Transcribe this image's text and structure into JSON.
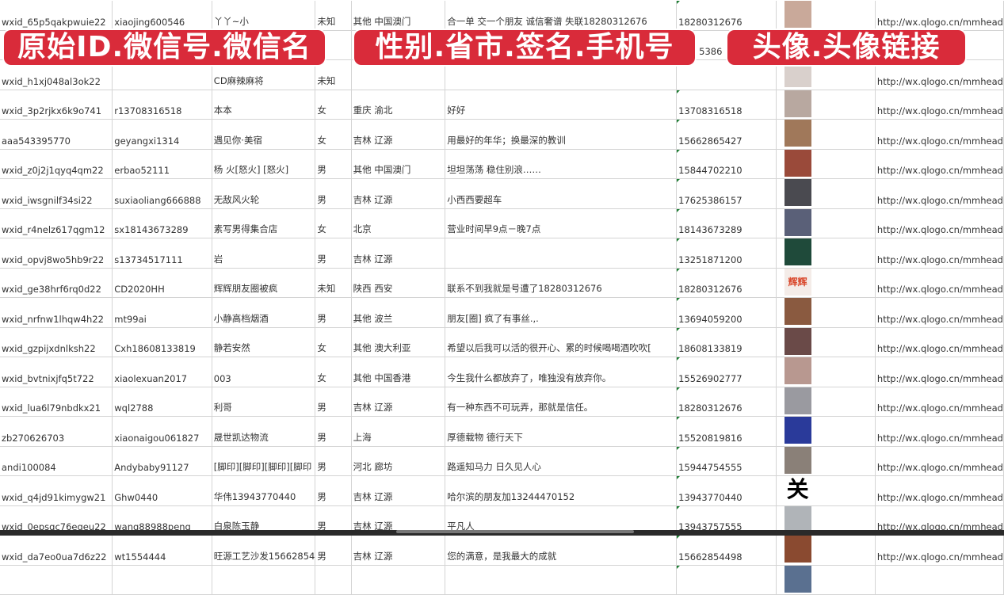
{
  "overlay_labels": [
    "原始ID.微信号.微信名",
    "性别.省市.签名.手机号",
    "头像.头像链接"
  ],
  "url_prefix": "http://wx.qlogo.cn/mmhead",
  "rows": [
    {
      "id": "wxid_65p5qakpwuie22",
      "wechat": "xiaojing600546",
      "name": "丫丫~小",
      "gender": "未知",
      "region": "其他 中国澳门",
      "signature": "合一单 交一个朋友 诚信奢谱 失联18280312676",
      "phone": "18280312676",
      "avatar": "#c9a99a"
    },
    {
      "id": "",
      "wechat": "",
      "name": "",
      "gender": "",
      "region": "",
      "signature": "",
      "phone": "5386",
      "avatar": "#8a9ab8"
    },
    {
      "id": "wxid_h1xj048al3ok22",
      "wechat": "",
      "name": "CD麻辣麻将",
      "gender": "未知",
      "region": "",
      "signature": "",
      "phone": "",
      "avatar": "#d9d0cc"
    },
    {
      "id": "wxid_3p2rjkx6k9o741",
      "wechat": "r13708316518",
      "name": "本本",
      "gender": "女",
      "region": "重庆 渝北",
      "signature": "好好",
      "phone": "13708316518",
      "avatar": "#b8a8a0"
    },
    {
      "id": "aaa543395770",
      "wechat": "geyangxi1314",
      "name": "遇见你·美宿",
      "gender": "女",
      "region": "吉林 辽源",
      "signature": "用最好的年华；换最深的教训",
      "phone": "15662865427",
      "avatar": "#a0785a"
    },
    {
      "id": "wxid_z0j2j1qyq4qm22",
      "wechat": "erbao52111",
      "name": "杨 火[怒火] [怒火]",
      "gender": "男",
      "region": "其他 中国澳门",
      "signature": "坦坦荡荡 稳住别浪……",
      "phone": "15844702210",
      "avatar": "#9a4a3a"
    },
    {
      "id": "wxid_iwsgnilf34si22",
      "wechat": "suxiaoliang666888",
      "name": "无敌风火轮",
      "gender": "男",
      "region": "吉林 辽源",
      "signature": "小西西要超车",
      "phone": "17625386157",
      "avatar": "#4a4a50"
    },
    {
      "id": "wxid_r4nelz617qgm12",
      "wechat": "sx18143673289",
      "name": "素写男得集合店",
      "gender": "女",
      "region": "北京",
      "signature": "营业时间早9点－晚7点",
      "phone": "18143673289",
      "avatar": "#5a6078"
    },
    {
      "id": "wxid_opvj8wo5hb9r22",
      "wechat": "s13734517111",
      "name": "岩",
      "gender": "男",
      "region": "吉林 辽源",
      "signature": "",
      "phone": "13251871200",
      "avatar": "#1f4a3a"
    },
    {
      "id": "wxid_ge38hrf6rq0d22",
      "wechat": "CD2020HH",
      "name": "辉辉朋友圈被疯",
      "gender": "未知",
      "region": "陕西 西安",
      "signature": "联系不到我就是号遭了18280312676",
      "phone": "18280312676",
      "avatar": "#f4ece8",
      "avatar_text": "辉辉"
    },
    {
      "id": "wxid_nrfnw1lhqw4h22",
      "wechat": "mt99ai",
      "name": "小静高档烟酒",
      "gender": "男",
      "region": "其他 波兰",
      "signature": "朋友[圈] 疯了有事丝.,.",
      "phone": "13694059200",
      "avatar": "#8a5a40"
    },
    {
      "id": "wxid_gzpijxdnlksh22",
      "wechat": "Cxh18608133819",
      "name": "静若安然",
      "gender": "女",
      "region": "其他 澳大利亚",
      "signature": "希望以后我可以活的很开心、累的时候喝喝酒吹吹[",
      "phone": "18608133819",
      "avatar": "#6a4a48"
    },
    {
      "id": "wxid_bvtnixjfq5t722",
      "wechat": "xiaolexuan2017",
      "name": "003",
      "gender": "女",
      "region": "其他 中国香港",
      "signature": "今生我什么都放弃了，唯独没有放弃你。",
      "phone": "15526902777",
      "avatar": "#b89890"
    },
    {
      "id": "wxid_lua6l79nbdkx21",
      "wechat": "wql2788",
      "name": "利哥",
      "gender": "男",
      "region": "吉林 辽源",
      "signature": "有一种东西不可玩弄，那就是信任。",
      "phone": "18280312676",
      "avatar": "#9a9aa0"
    },
    {
      "id": "zb270626703",
      "wechat": "xiaonaigou061827",
      "name": "晟世凯达物流",
      "gender": "男",
      "region": "上海",
      "signature": "厚德载物 德行天下",
      "phone": "15520819816",
      "avatar": "#2a3a9a"
    },
    {
      "id": "andi100084",
      "wechat": "Andybaby91127",
      "name": "[脚印][脚印][脚印][脚印",
      "gender": "男",
      "region": "河北 廊坊",
      "signature": "路遥知马力 日久见人心",
      "phone": "15944754555",
      "avatar": "#8a8078"
    },
    {
      "id": "wxid_q4jd91kimygw21",
      "wechat": "Ghw0440",
      "name": "华伟13943770440",
      "gender": "男",
      "region": "吉林 辽源",
      "signature": "哈尔滨的朋友加13244470152",
      "phone": "13943770440",
      "avatar": "#ffffff",
      "avatar_text": "关"
    },
    {
      "id": "wxid_0epsqc76egeu22",
      "wechat": "wang88988peng",
      "name": "白泉陈玉静",
      "gender": "男",
      "region": "吉林 辽源",
      "signature": "平凡人",
      "phone": "13943757555",
      "avatar": "#b0b4b8"
    },
    {
      "id": "wxid_da7eo0ua7d6z22",
      "wechat": "wt1554444",
      "name": "旺源工艺沙发15662854",
      "gender": "男",
      "region": "吉林 辽源",
      "signature": "您的满意，是我最大的成就",
      "phone": "15662854498",
      "avatar": "#8a4a30"
    },
    {
      "id": "",
      "wechat": "",
      "name": "",
      "gender": "",
      "region": "",
      "signature": "",
      "phone": "",
      "avatar": "#5a7090"
    }
  ]
}
